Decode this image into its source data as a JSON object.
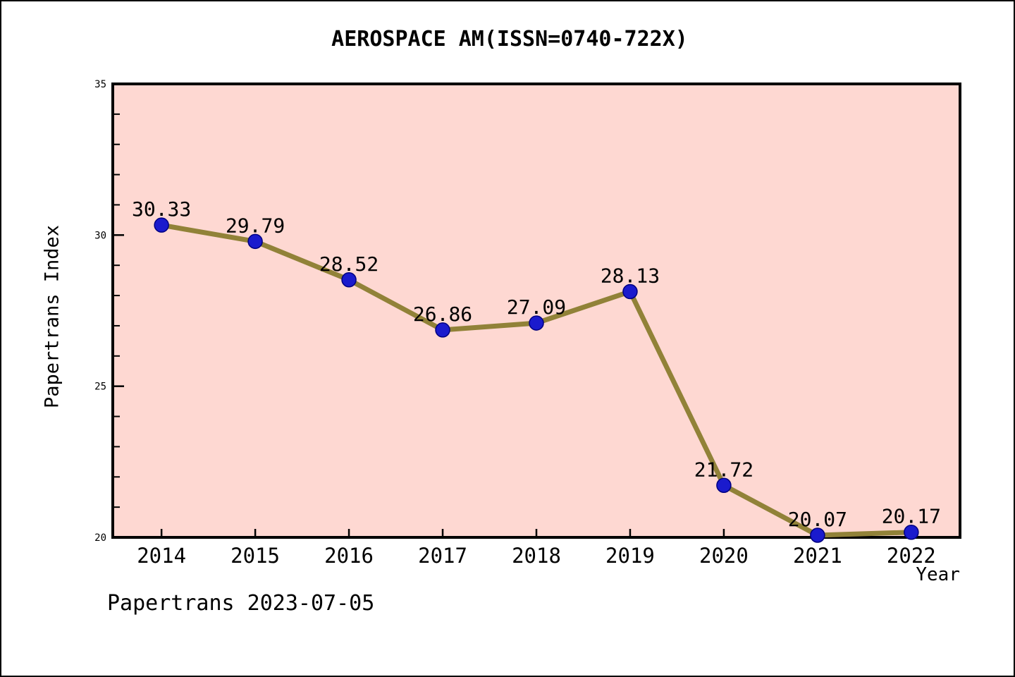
{
  "header": {
    "title": "AEROSPACE AM(ISSN=0740-722X)"
  },
  "footer": {
    "text": "Papertrans 2023-07-05"
  },
  "chart_data": {
    "type": "line",
    "title": "AEROSPACE AM(ISSN=0740-722X)",
    "xlabel": "Year",
    "ylabel": "Papertrans Index",
    "x": [
      2014,
      2015,
      2016,
      2017,
      2018,
      2019,
      2020,
      2021,
      2022
    ],
    "values": [
      30.33,
      29.79,
      28.52,
      26.86,
      27.09,
      28.13,
      21.72,
      20.07,
      20.17
    ],
    "point_labels": [
      "30.33",
      "29.79",
      "28.52",
      "26.86",
      "27.09",
      "28.13",
      "21.72",
      "20.07",
      "20.17"
    ],
    "xlim": [
      2013.48,
      2022.52
    ],
    "ylim": [
      20,
      35
    ],
    "yticks_major": [
      20,
      25,
      30,
      35
    ],
    "yticks_minor": [
      21,
      22,
      23,
      24,
      26,
      27,
      28,
      29,
      31,
      32,
      33,
      34
    ],
    "grid": false,
    "legend": null,
    "colors": {
      "plot_background": "#fed8d2",
      "line": "#918238",
      "marker_fill": "#1a1acd",
      "marker_edge": "#000080",
      "axis": "#000000",
      "text": "#000000"
    }
  }
}
